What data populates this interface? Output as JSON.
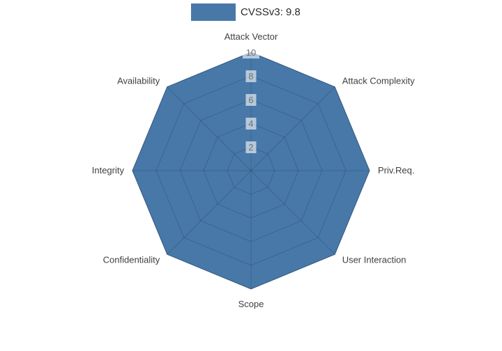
{
  "chart_data": {
    "type": "radar",
    "title": "",
    "categories": [
      "Attack Vector",
      "Attack Complexity",
      "Priv.Req.",
      "User Interaction",
      "Scope",
      "Confidentiality",
      "Integrity",
      "Availability"
    ],
    "series": [
      {
        "name": "CVSSv3: 9.8",
        "values": [
          10,
          10,
          10,
          10,
          10,
          10,
          10,
          10
        ],
        "color": "#4878a8",
        "outline_color": "#3d6b99"
      }
    ],
    "radial_ticks": [
      2,
      4,
      6,
      8,
      10
    ],
    "radial_tick_labels": [
      "2",
      "4",
      "6",
      "8",
      "10"
    ],
    "radial_range": [
      0,
      10
    ],
    "direction": "clockwise",
    "start_angle_deg": 90,
    "grid": true,
    "legend_position": "top-center",
    "colors": {
      "grid_line": "rgba(0,0,0,0.16)",
      "tick_label_text": "#737373",
      "tick_label_bg": "rgba(255,255,255,0.6)",
      "axis_label_text": "#404040",
      "background": "#ffffff"
    }
  }
}
